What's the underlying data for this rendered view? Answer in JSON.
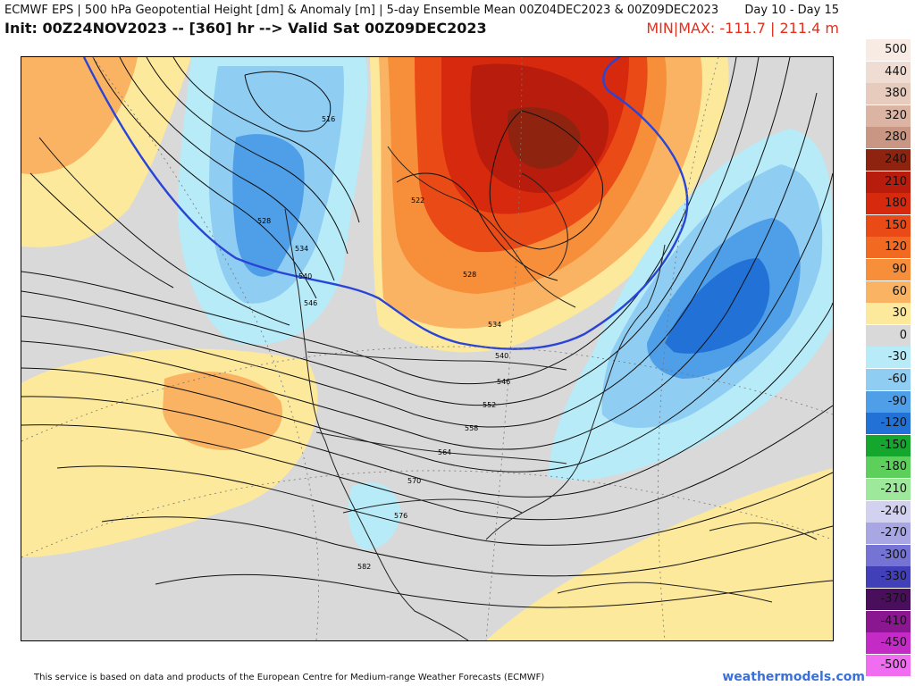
{
  "header": {
    "line1": "ECMWF EPS | 500 hPa Geopotential Height [dm] & Anomaly [m] | 5-day Ensemble Mean 00Z04DEC2023 & 00Z09DEC2023",
    "days": "Day 10 - Day 15",
    "init": "Init: 00Z24NOV2023 -- [360] hr --> Valid Sat 00Z09DEC2023",
    "minmax": "MIN|MAX: -111.7 | 211.4 m"
  },
  "legend": [
    {
      "label": "500",
      "color": "#f7ebe4"
    },
    {
      "label": "440",
      "color": "#efdcd2"
    },
    {
      "label": "380",
      "color": "#e7cbbd"
    },
    {
      "label": "320",
      "color": "#dbb4a3"
    },
    {
      "label": "280",
      "color": "#c89682"
    },
    {
      "label": "240",
      "color": "#8e2410"
    },
    {
      "label": "210",
      "color": "#b71c0c"
    },
    {
      "label": "180",
      "color": "#d7290e"
    },
    {
      "label": "150",
      "color": "#ea4a16"
    },
    {
      "label": "120",
      "color": "#f26a22"
    },
    {
      "label": "90",
      "color": "#f78e3a"
    },
    {
      "label": "60",
      "color": "#f9b363"
    },
    {
      "label": "30",
      "color": "#fde99c"
    },
    {
      "label": "0",
      "color": "#d9d9d9"
    },
    {
      "label": "-30",
      "color": "#b6ebf7"
    },
    {
      "label": "-60",
      "color": "#8fcdf3"
    },
    {
      "label": "-90",
      "color": "#4f9ee8"
    },
    {
      "label": "-120",
      "color": "#2271d6"
    },
    {
      "label": "-150",
      "color": "#15a62e"
    },
    {
      "label": "-180",
      "color": "#5dd05c"
    },
    {
      "label": "-210",
      "color": "#9de89a"
    },
    {
      "label": "-240",
      "color": "#d2d2f0"
    },
    {
      "label": "-270",
      "color": "#a8a7e4"
    },
    {
      "label": "-300",
      "color": "#7574d4"
    },
    {
      "label": "-330",
      "color": "#4240b9"
    },
    {
      "label": "-370",
      "color": "#4a0f5c"
    },
    {
      "label": "-410",
      "color": "#8a1790"
    },
    {
      "label": "-450",
      "color": "#c42bc6"
    },
    {
      "label": "-500",
      "color": "#f06cf0"
    }
  ],
  "contour_labels": [
    "516",
    "522",
    "528",
    "528",
    "534",
    "534",
    "540",
    "540",
    "546",
    "546",
    "552",
    "558",
    "564",
    "570",
    "576",
    "582"
  ],
  "footer": "This service is based on data and products of the European Centre for Medium-range Weather Forecasts (ECMWF)",
  "brand": "weathermodels.com"
}
